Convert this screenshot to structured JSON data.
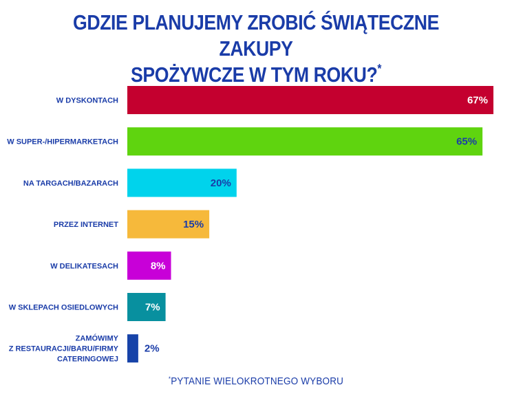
{
  "title": {
    "line1": "GDZIE PLANUJEMY ZROBIĆ ŚWIĄTECZNE ZAKUPY",
    "line2": "SPOŻYWCZE W TYM ROKU?",
    "mark": "*"
  },
  "footnote": {
    "mark": "*",
    "text": "PYTANIE WIELOKROTNEGO WYBORU"
  },
  "chart_data": {
    "type": "bar",
    "orientation": "horizontal",
    "title": "GDZIE PLANUJEMY ZROBIĆ ŚWIĄTECZNE ZAKUPY SPOŻYWCZE W TYM ROKU?*",
    "xlim": [
      0,
      67
    ],
    "grid": false,
    "categories": [
      [
        "W DYSKONTACH"
      ],
      [
        "W SUPER-/HIPERMARKETACH"
      ],
      [
        "NA TARGACH/BAZARACH"
      ],
      [
        "PRZEZ INTERNET"
      ],
      [
        "W DELIKATESACH"
      ],
      [
        "W SKLEPACH OSIEDLOWYCH"
      ],
      [
        "ZAMÓWIMY",
        "Z RESTAURACJI/BARU/FIRMY",
        "CATERINGOWEJ"
      ]
    ],
    "values": [
      67,
      65,
      20,
      15,
      8,
      7,
      2
    ],
    "value_labels": [
      "67%",
      "65%",
      "20%",
      "15%",
      "8%",
      "7%",
      "2%"
    ],
    "colors": [
      "#c4002f",
      "#5fd40f",
      "#00d3ec",
      "#f6b93b",
      "#c800d8",
      "#08909f",
      "#1743a8"
    ],
    "label_colors": [
      "#ffffff",
      "#1a3ca8",
      "#1a3ca8",
      "#1a3ca8",
      "#ffffff",
      "#ffffff",
      "#1a3ca8"
    ]
  }
}
